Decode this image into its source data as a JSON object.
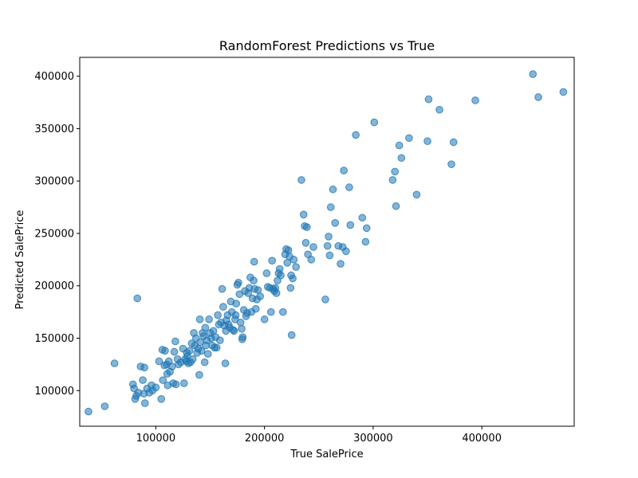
{
  "chart_data": {
    "type": "scatter",
    "title": "RandomForest Predictions vs True",
    "xlabel": "True SalePrice",
    "ylabel": "Predicted SalePrice",
    "xlim": [
      30000,
      485000
    ],
    "ylim": [
      66000,
      418000
    ],
    "xticks": [
      100000,
      200000,
      300000,
      400000
    ],
    "yticks": [
      100000,
      150000,
      200000,
      250000,
      300000,
      350000,
      400000
    ],
    "xtick_labels": [
      "100000",
      "200000",
      "300000",
      "400000"
    ],
    "ytick_labels": [
      "100000",
      "150000",
      "200000",
      "250000",
      "300000",
      "350000",
      "400000"
    ],
    "grid": false,
    "marker_color": "#1f77b4",
    "series": [
      {
        "points": [
          [
            38000,
            80000
          ],
          [
            53000,
            85000
          ],
          [
            62000,
            126000
          ],
          [
            79000,
            106000
          ],
          [
            80000,
            102000
          ],
          [
            81000,
            92000
          ],
          [
            82000,
            95000
          ],
          [
            83000,
            188000
          ],
          [
            84000,
            98000
          ],
          [
            86000,
            123000
          ],
          [
            88000,
            110000
          ],
          [
            89000,
            97000
          ],
          [
            89500,
            122000
          ],
          [
            90000,
            88000
          ],
          [
            92000,
            102000
          ],
          [
            94000,
            98000
          ],
          [
            96000,
            105000
          ],
          [
            97000,
            100000
          ],
          [
            100000,
            103000
          ],
          [
            103000,
            128000
          ],
          [
            105000,
            92000
          ],
          [
            106000,
            139000
          ],
          [
            106500,
            110000
          ],
          [
            108000,
            124000
          ],
          [
            108500,
            138000
          ],
          [
            110000,
            125000
          ],
          [
            110500,
            116000
          ],
          [
            111000,
            105000
          ],
          [
            112000,
            128000
          ],
          [
            113000,
            118000
          ],
          [
            115000,
            123000
          ],
          [
            116000,
            107000
          ],
          [
            117000,
            137000
          ],
          [
            118000,
            147000
          ],
          [
            118500,
            106000
          ],
          [
            120000,
            130000
          ],
          [
            121000,
            125000
          ],
          [
            123000,
            127000
          ],
          [
            125000,
            140000
          ],
          [
            126000,
            107000
          ],
          [
            127000,
            130000
          ],
          [
            128000,
            128000
          ],
          [
            128500,
            136000
          ],
          [
            129000,
            133000
          ],
          [
            130000,
            126000
          ],
          [
            131000,
            138000
          ],
          [
            132000,
            127000
          ],
          [
            133000,
            145000
          ],
          [
            134000,
            130000
          ],
          [
            135000,
            155000
          ],
          [
            136000,
            143000
          ],
          [
            137000,
            150000
          ],
          [
            138000,
            136000
          ],
          [
            139000,
            140000
          ],
          [
            140000,
            115000
          ],
          [
            140500,
            168000
          ],
          [
            141000,
            146000
          ],
          [
            142000,
            138000
          ],
          [
            143000,
            155000
          ],
          [
            144000,
            152000
          ],
          [
            145000,
            127000
          ],
          [
            145500,
            160000
          ],
          [
            146000,
            143000
          ],
          [
            147000,
            148000
          ],
          [
            148000,
            135000
          ],
          [
            149000,
            168000
          ],
          [
            150000,
            155000
          ],
          [
            151000,
            150000
          ],
          [
            152000,
            143000
          ],
          [
            153000,
            157000
          ],
          [
            154000,
            141000
          ],
          [
            155000,
            151000
          ],
          [
            156000,
            141000
          ],
          [
            157000,
            172000
          ],
          [
            158000,
            163000
          ],
          [
            159000,
            148000
          ],
          [
            160000,
            165000
          ],
          [
            161000,
            197000
          ],
          [
            162000,
            180000
          ],
          [
            163000,
            162000
          ],
          [
            164000,
            126000
          ],
          [
            164500,
            157000
          ],
          [
            165000,
            167000
          ],
          [
            166000,
            172000
          ],
          [
            167000,
            163000
          ],
          [
            168000,
            160000
          ],
          [
            169000,
            185000
          ],
          [
            170000,
            175000
          ],
          [
            171000,
            158000
          ],
          [
            172000,
            157000
          ],
          [
            173000,
            168000
          ],
          [
            173500,
            172000
          ],
          [
            174000,
            183000
          ],
          [
            175000,
            201000
          ],
          [
            176000,
            203000
          ],
          [
            177000,
            192000
          ],
          [
            178000,
            165000
          ],
          [
            179000,
            159000
          ],
          [
            179500,
            149000
          ],
          [
            180000,
            151000
          ],
          [
            181000,
            177000
          ],
          [
            182000,
            195000
          ],
          [
            183000,
            171000
          ],
          [
            184000,
            174000
          ],
          [
            185000,
            193000
          ],
          [
            186000,
            198000
          ],
          [
            187000,
            208000
          ],
          [
            188000,
            175000
          ],
          [
            189000,
            188000
          ],
          [
            190000,
            205000
          ],
          [
            190500,
            223000
          ],
          [
            191000,
            197000
          ],
          [
            192000,
            178000
          ],
          [
            193000,
            187000
          ],
          [
            194000,
            196000
          ],
          [
            196000,
            190000
          ],
          [
            200000,
            168000
          ],
          [
            202000,
            212000
          ],
          [
            203000,
            199000
          ],
          [
            205000,
            198000
          ],
          [
            206000,
            175000
          ],
          [
            207000,
            224000
          ],
          [
            208000,
            197000
          ],
          [
            209000,
            195000
          ],
          [
            210000,
            198000
          ],
          [
            211000,
            193000
          ],
          [
            212000,
            205000
          ],
          [
            213000,
            212000
          ],
          [
            214000,
            216000
          ],
          [
            215000,
            210000
          ],
          [
            217000,
            175000
          ],
          [
            219000,
            230000
          ],
          [
            220000,
            235000
          ],
          [
            221000,
            222000
          ],
          [
            222000,
            234000
          ],
          [
            223000,
            228000
          ],
          [
            224000,
            198000
          ],
          [
            224500,
            210000
          ],
          [
            225000,
            153000
          ],
          [
            226000,
            207000
          ],
          [
            227000,
            225000
          ],
          [
            229000,
            218000
          ],
          [
            234000,
            301000
          ],
          [
            236000,
            268000
          ],
          [
            237000,
            257000
          ],
          [
            238000,
            241000
          ],
          [
            239000,
            256000
          ],
          [
            240000,
            230000
          ],
          [
            243000,
            225000
          ],
          [
            245000,
            237000
          ],
          [
            256000,
            187000
          ],
          [
            258000,
            238000
          ],
          [
            259000,
            247000
          ],
          [
            260000,
            229000
          ],
          [
            261000,
            275000
          ],
          [
            263000,
            292000
          ],
          [
            265000,
            260000
          ],
          [
            268000,
            238000
          ],
          [
            270000,
            221000
          ],
          [
            272000,
            237000
          ],
          [
            273000,
            310000
          ],
          [
            275000,
            233000
          ],
          [
            278000,
            294000
          ],
          [
            279000,
            258000
          ],
          [
            284000,
            344000
          ],
          [
            290000,
            265000
          ],
          [
            293000,
            242000
          ],
          [
            294000,
            255000
          ],
          [
            301000,
            356000
          ],
          [
            318000,
            301000
          ],
          [
            320000,
            309000
          ],
          [
            321000,
            276000
          ],
          [
            324000,
            334000
          ],
          [
            326000,
            322000
          ],
          [
            333000,
            341000
          ],
          [
            340000,
            287000
          ],
          [
            350000,
            338000
          ],
          [
            351000,
            378000
          ],
          [
            361000,
            368000
          ],
          [
            372000,
            316000
          ],
          [
            374000,
            337000
          ],
          [
            394000,
            377000
          ],
          [
            447000,
            402000
          ],
          [
            452000,
            380000
          ],
          [
            475000,
            385000
          ]
        ]
      }
    ]
  }
}
